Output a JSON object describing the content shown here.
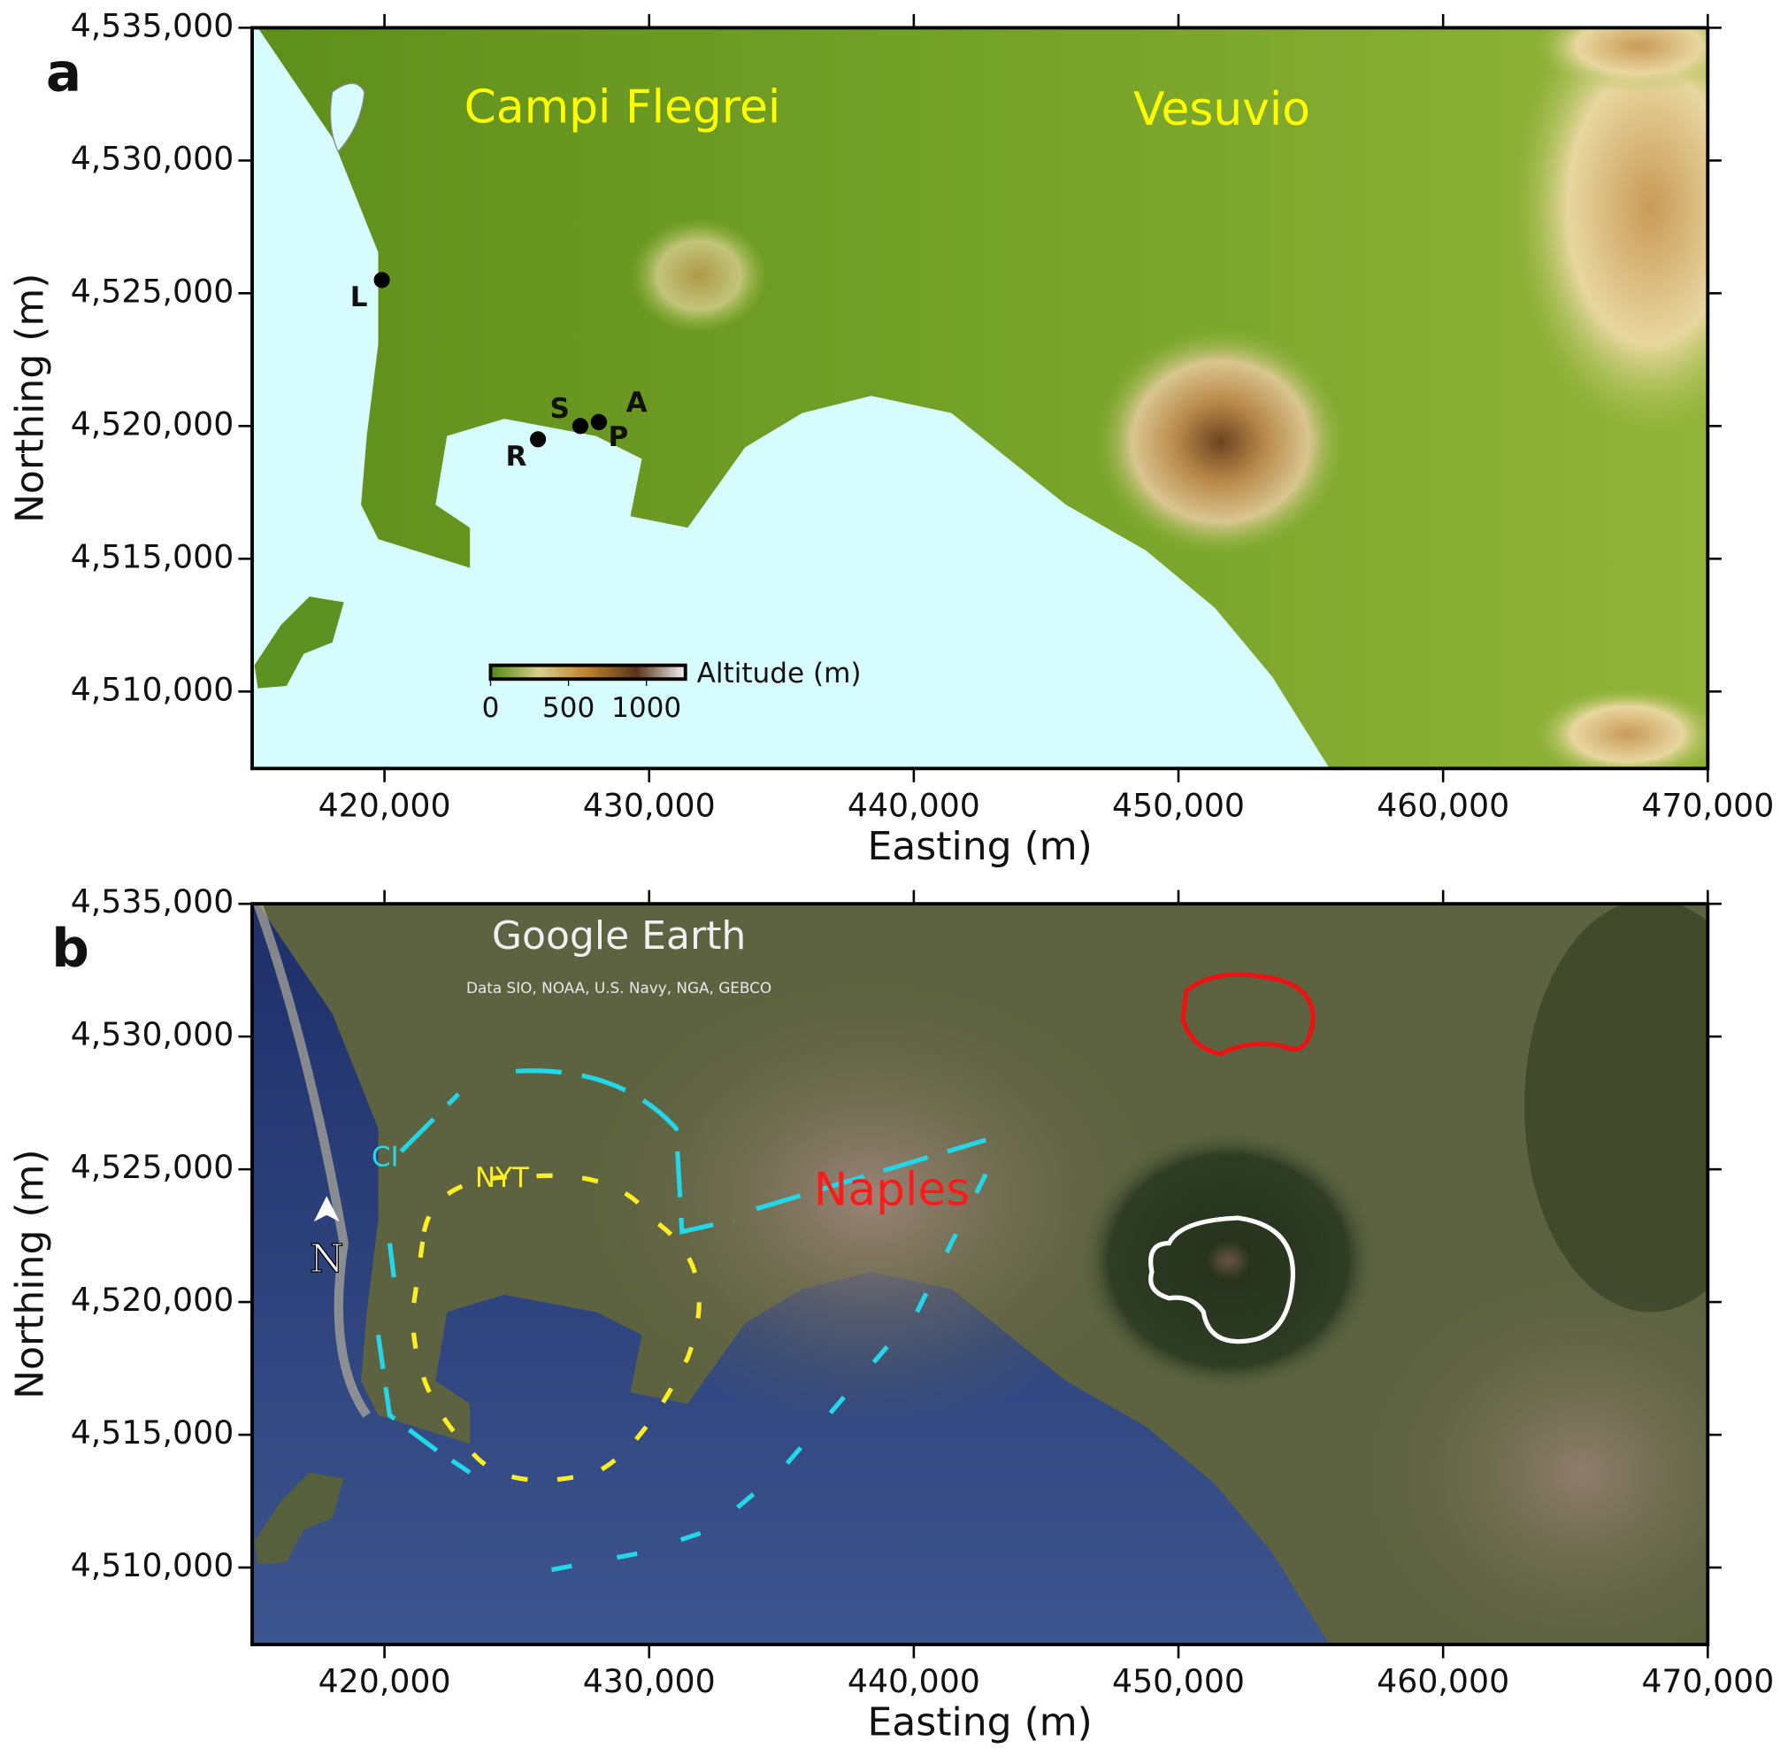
{
  "panels": [
    {
      "label": "a",
      "xlabel": "Easting (m)",
      "ylabel": "Northing (m)",
      "xlim": [
        415000,
        470000
      ],
      "ylim": [
        4507100,
        4535000
      ],
      "xticks": [
        {
          "value": 420000,
          "label": "420,000"
        },
        {
          "value": 430000,
          "label": "430,000"
        },
        {
          "value": 440000,
          "label": "440,000"
        },
        {
          "value": 450000,
          "label": "450,000"
        },
        {
          "value": 460000,
          "label": "460,000"
        },
        {
          "value": 470000,
          "label": "470,000"
        }
      ],
      "yticks": [
        {
          "value": 4510000,
          "label": "4,510,000"
        },
        {
          "value": 4515000,
          "label": "4,515,000"
        },
        {
          "value": 4520000,
          "label": "4,520,000"
        },
        {
          "value": 4525000,
          "label": "4,525,000"
        },
        {
          "value": 4530000,
          "label": "4,530,000"
        },
        {
          "value": 4535000,
          "label": "4,535,000"
        }
      ],
      "annotations": [
        {
          "text": "Campi Flegrei",
          "color": "#ffff00"
        },
        {
          "text": "Vesuvio",
          "color": "#ffff00"
        }
      ],
      "points": [
        {
          "label": "L",
          "x": 419900,
          "y": 4525500
        },
        {
          "label": "S",
          "x": 427400,
          "y": 4520000
        },
        {
          "label": "A",
          "x": 428100,
          "y": 4520150
        },
        {
          "label": "P",
          "x": 428100,
          "y": 4520150
        },
        {
          "label": "R",
          "x": 425800,
          "y": 4519500
        }
      ],
      "colorbar": {
        "label": "Altitude (m)",
        "lim": [
          0,
          1250
        ],
        "ticks": [
          0,
          500,
          1000
        ]
      }
    },
    {
      "label": "b",
      "xlabel": "Easting (m)",
      "ylabel": "Northing (m)",
      "xlim": [
        415000,
        470000
      ],
      "ylim": [
        4507100,
        4535000
      ],
      "xticks": [
        {
          "value": 420000,
          "label": "420,000"
        },
        {
          "value": 430000,
          "label": "430,000"
        },
        {
          "value": 440000,
          "label": "440,000"
        },
        {
          "value": 450000,
          "label": "450,000"
        },
        {
          "value": 460000,
          "label": "460,000"
        },
        {
          "value": 470000,
          "label": "470,000"
        }
      ],
      "yticks": [
        {
          "value": 4510000,
          "label": "4,510,000"
        },
        {
          "value": 4515000,
          "label": "4,515,000"
        },
        {
          "value": 4520000,
          "label": "4,520,000"
        },
        {
          "value": 4525000,
          "label": "4,525,000"
        },
        {
          "value": 4530000,
          "label": "4,530,000"
        },
        {
          "value": 4535000,
          "label": "4,535,000"
        }
      ],
      "annotations": [
        {
          "text": "CI",
          "color": "#22d8e8"
        },
        {
          "text": "NYT",
          "color": "#ffee22"
        },
        {
          "text": "Naples",
          "color": "#ff1a1a"
        }
      ],
      "north_arrow": "N",
      "watermark": "Google Earth",
      "attribution": "Data SIO, NOAA, U.S. Navy, NGA, GEBCO"
    }
  ]
}
